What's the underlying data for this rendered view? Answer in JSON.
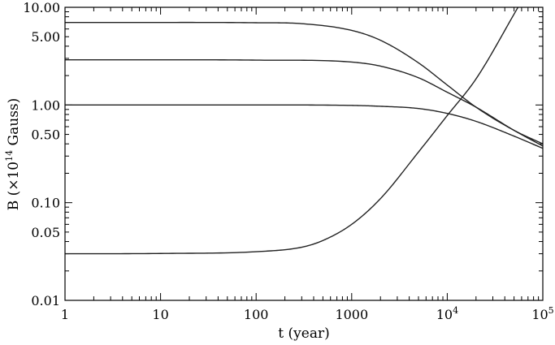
{
  "chart_data": {
    "type": "line",
    "xlabel": "t (year)",
    "ylabel_parts": {
      "pre": "B (×10",
      "sup": "14",
      "post": " Gauss)"
    },
    "xscale": "log",
    "yscale": "log",
    "xlim": [
      1,
      100000
    ],
    "ylim": [
      0.01,
      10
    ],
    "x_ticks": [
      {
        "value": 1,
        "base": "1",
        "sup": ""
      },
      {
        "value": 10,
        "base": "10",
        "sup": ""
      },
      {
        "value": 100,
        "base": "100",
        "sup": ""
      },
      {
        "value": 1000,
        "base": "1000",
        "sup": ""
      },
      {
        "value": 10000,
        "base": "10",
        "sup": "4"
      },
      {
        "value": 100000,
        "base": "10",
        "sup": "5"
      }
    ],
    "y_ticks": [
      {
        "value": 10,
        "label": "10.00"
      },
      {
        "value": 5,
        "label": "5.00"
      },
      {
        "value": 1,
        "label": "1.00"
      },
      {
        "value": 0.5,
        "label": "0.50"
      },
      {
        "value": 0.1,
        "label": "0.10"
      },
      {
        "value": 0.05,
        "label": "0.05"
      },
      {
        "value": 0.01,
        "label": "0.01"
      }
    ],
    "series": [
      {
        "x": [
          1,
          10,
          100,
          300,
          1000,
          2000,
          5000,
          10000,
          20000,
          50000,
          100000
        ],
        "y": [
          7.0,
          7.0,
          6.95,
          6.8,
          5.8,
          4.6,
          2.7,
          1.6,
          0.95,
          0.55,
          0.4
        ]
      },
      {
        "x": [
          1,
          10,
          100,
          1000,
          2000,
          5000,
          10000,
          20000,
          50000,
          100000
        ],
        "y": [
          2.9,
          2.9,
          2.88,
          2.75,
          2.5,
          1.9,
          1.35,
          0.95,
          0.55,
          0.38
        ]
      },
      {
        "x": [
          1,
          10,
          100,
          1000,
          2000,
          5000,
          10000,
          20000,
          50000,
          100000
        ],
        "y": [
          1.0,
          1.0,
          1.0,
          0.99,
          0.97,
          0.92,
          0.82,
          0.68,
          0.48,
          0.36
        ]
      },
      {
        "x": [
          1,
          10,
          100,
          300,
          500,
          1000,
          2000,
          5000,
          10000,
          20000,
          55000
        ],
        "y": [
          0.03,
          0.0302,
          0.0315,
          0.035,
          0.041,
          0.06,
          0.11,
          0.33,
          0.78,
          1.85,
          10.0
        ]
      }
    ],
    "grid": false,
    "legend": "none"
  }
}
